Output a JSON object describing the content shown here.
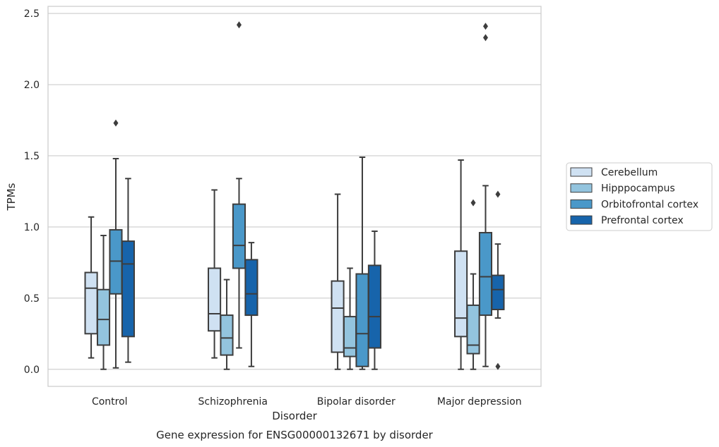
{
  "chart_data": {
    "type": "box",
    "caption": "Gene expression for ENSG00000132671 by disorder",
    "xlabel": "Disorder",
    "ylabel": "TPMs",
    "ylim": [
      -0.12,
      2.55
    ],
    "yticks": [
      0.0,
      0.5,
      1.0,
      1.5,
      2.0,
      2.5
    ],
    "ytick_labels": [
      "0.0",
      "0.5",
      "1.0",
      "1.5",
      "2.0",
      "2.5"
    ],
    "grid": "horizontal",
    "legend_position": "right",
    "categories": [
      "Control",
      "Schizophrenia",
      "Bipolar disorder",
      "Major depression"
    ],
    "series": [
      {
        "name": "Cerebellum",
        "color": "#cfe1f2",
        "boxes": [
          {
            "q1": 0.25,
            "median": 0.57,
            "q3": 0.68,
            "whisker_low": 0.08,
            "whisker_high": 1.07,
            "outliers": []
          },
          {
            "q1": 0.27,
            "median": 0.39,
            "q3": 0.71,
            "whisker_low": 0.08,
            "whisker_high": 1.26,
            "outliers": []
          },
          {
            "q1": 0.12,
            "median": 0.43,
            "q3": 0.62,
            "whisker_low": 0.0,
            "whisker_high": 1.23,
            "outliers": []
          },
          {
            "q1": 0.23,
            "median": 0.36,
            "q3": 0.83,
            "whisker_low": 0.0,
            "whisker_high": 1.47,
            "outliers": []
          }
        ]
      },
      {
        "name": "Hipppocampus",
        "color": "#93c4de",
        "boxes": [
          {
            "q1": 0.17,
            "median": 0.35,
            "q3": 0.56,
            "whisker_low": 0.0,
            "whisker_high": 0.94,
            "outliers": []
          },
          {
            "q1": 0.1,
            "median": 0.22,
            "q3": 0.38,
            "whisker_low": 0.0,
            "whisker_high": 0.63,
            "outliers": []
          },
          {
            "q1": 0.09,
            "median": 0.15,
            "q3": 0.37,
            "whisker_low": 0.0,
            "whisker_high": 0.71,
            "outliers": []
          },
          {
            "q1": 0.11,
            "median": 0.17,
            "q3": 0.45,
            "whisker_low": 0.0,
            "whisker_high": 0.67,
            "outliers": [
              1.17
            ]
          }
        ]
      },
      {
        "name": "Orbitofrontal cortex",
        "color": "#4a98c9",
        "boxes": [
          {
            "q1": 0.53,
            "median": 0.76,
            "q3": 0.98,
            "whisker_low": 0.01,
            "whisker_high": 1.48,
            "outliers": [
              1.73
            ]
          },
          {
            "q1": 0.71,
            "median": 0.87,
            "q3": 1.16,
            "whisker_low": 0.15,
            "whisker_high": 1.34,
            "outliers": [
              2.42
            ]
          },
          {
            "q1": 0.02,
            "median": 0.25,
            "q3": 0.67,
            "whisker_low": 0.0,
            "whisker_high": 1.49,
            "outliers": []
          },
          {
            "q1": 0.38,
            "median": 0.65,
            "q3": 0.96,
            "whisker_low": 0.02,
            "whisker_high": 1.29,
            "outliers": [
              2.33,
              2.41
            ]
          }
        ]
      },
      {
        "name": "Prefrontal cortex",
        "color": "#1764ab",
        "boxes": [
          {
            "q1": 0.23,
            "median": 0.74,
            "q3": 0.9,
            "whisker_low": 0.05,
            "whisker_high": 1.34,
            "outliers": []
          },
          {
            "q1": 0.38,
            "median": 0.53,
            "q3": 0.77,
            "whisker_low": 0.02,
            "whisker_high": 0.89,
            "outliers": []
          },
          {
            "q1": 0.15,
            "median": 0.37,
            "q3": 0.73,
            "whisker_low": 0.0,
            "whisker_high": 0.97,
            "outliers": []
          },
          {
            "q1": 0.42,
            "median": 0.56,
            "q3": 0.66,
            "whisker_low": 0.36,
            "whisker_high": 0.88,
            "outliers": [
              0.02,
              1.23
            ]
          }
        ]
      }
    ]
  }
}
